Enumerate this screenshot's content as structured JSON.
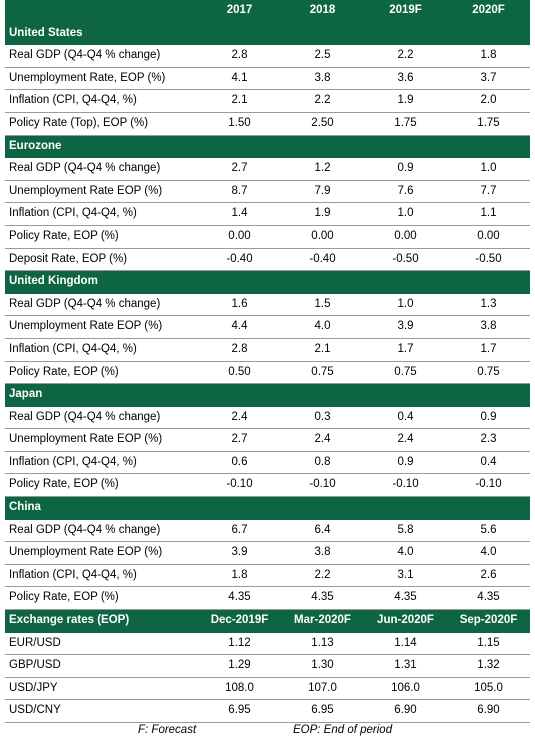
{
  "header": {
    "label": "",
    "columns": [
      "2017",
      "2018",
      "2019F",
      "2020F"
    ]
  },
  "sections": [
    {
      "title": "United States",
      "rows": [
        {
          "label": "Real GDP (Q4-Q4 % change)",
          "values": [
            "2.8",
            "2.5",
            "2.2",
            "1.8"
          ]
        },
        {
          "label": "Unemployment Rate, EOP (%)",
          "values": [
            "4.1",
            "3.8",
            "3.6",
            "3.7"
          ]
        },
        {
          "label": "Inflation (CPI, Q4-Q4, %)",
          "values": [
            "2.1",
            "2.2",
            "1.9",
            "2.0"
          ]
        },
        {
          "label": "Policy Rate (Top), EOP (%)",
          "values": [
            "1.50",
            "2.50",
            "1.75",
            "1.75"
          ]
        }
      ]
    },
    {
      "title": "Eurozone",
      "rows": [
        {
          "label": "Real GDP (Q4-Q4 % change)",
          "values": [
            "2.7",
            "1.2",
            "0.9",
            "1.0"
          ]
        },
        {
          "label": "Unemployment Rate EOP (%)",
          "values": [
            "8.7",
            "7.9",
            "7.6",
            "7.7"
          ]
        },
        {
          "label": "Inflation (CPI, Q4-Q4, %)",
          "values": [
            "1.4",
            "1.9",
            "1.0",
            "1.1"
          ]
        },
        {
          "label": "Policy Rate, EOP (%)",
          "values": [
            "0.00",
            "0.00",
            "0.00",
            "0.00"
          ]
        },
        {
          "label": "Deposit Rate, EOP (%)",
          "values": [
            "-0.40",
            "-0.40",
            "-0.50",
            "-0.50"
          ]
        }
      ]
    },
    {
      "title": "United Kingdom",
      "rows": [
        {
          "label": "Real GDP (Q4-Q4 % change)",
          "values": [
            "1.6",
            "1.5",
            "1.0",
            "1.3"
          ]
        },
        {
          "label": "Unemployment Rate EOP (%)",
          "values": [
            "4.4",
            "4.0",
            "3.9",
            "3.8"
          ]
        },
        {
          "label": "Inflation (CPI, Q4-Q4, %)",
          "values": [
            "2.8",
            "2.1",
            "1.7",
            "1.7"
          ]
        },
        {
          "label": "Policy Rate, EOP (%)",
          "values": [
            "0.50",
            "0.75",
            "0.75",
            "0.75"
          ]
        }
      ]
    },
    {
      "title": "Japan",
      "rows": [
        {
          "label": "Real GDP (Q4-Q4 % change)",
          "values": [
            "2.4",
            "0.3",
            "0.4",
            "0.9"
          ]
        },
        {
          "label": "Unemployment Rate EOP (%)",
          "values": [
            "2.7",
            "2.4",
            "2.4",
            "2.3"
          ]
        },
        {
          "label": "Inflation (CPI, Q4-Q4, %)",
          "values": [
            "0.6",
            "0.8",
            "0.9",
            "0.4"
          ]
        },
        {
          "label": "Policy Rate, EOP (%)",
          "values": [
            "-0.10",
            "-0.10",
            "-0.10",
            "-0.10"
          ]
        }
      ]
    },
    {
      "title": "China",
      "rows": [
        {
          "label": "Real GDP (Q4-Q4 % change)",
          "values": [
            "6.7",
            "6.4",
            "5.8",
            "5.6"
          ]
        },
        {
          "label": "Unemployment Rate EOP (%)",
          "values": [
            "3.9",
            "3.8",
            "4.0",
            "4.0"
          ]
        },
        {
          "label": "Inflation (CPI, Q4-Q4, %)",
          "values": [
            "1.8",
            "2.2",
            "3.1",
            "2.6"
          ]
        },
        {
          "label": "Policy Rate, EOP (%)",
          "values": [
            "4.35",
            "4.35",
            "4.35",
            "4.35"
          ]
        }
      ]
    }
  ],
  "fx": {
    "title": "Exchange rates (EOP)",
    "columns": [
      "Dec-2019F",
      "Mar-2020F",
      "Jun-2020F",
      "Sep-2020F"
    ],
    "rows": [
      {
        "label": "EUR/USD",
        "values": [
          "1.12",
          "1.13",
          "1.14",
          "1.15"
        ]
      },
      {
        "label": "GBP/USD",
        "values": [
          "1.29",
          "1.30",
          "1.31",
          "1.32"
        ]
      },
      {
        "label": "USD/JPY",
        "values": [
          "108.0",
          "107.0",
          "106.0",
          "105.0"
        ]
      },
      {
        "label": "USD/CNY",
        "values": [
          "6.95",
          "6.95",
          "6.90",
          "6.90"
        ]
      }
    ]
  },
  "footnotes": {
    "forecast": "F: Forecast",
    "eop": "EOP: End of period"
  },
  "colors": {
    "header_green": "#0e6543"
  }
}
